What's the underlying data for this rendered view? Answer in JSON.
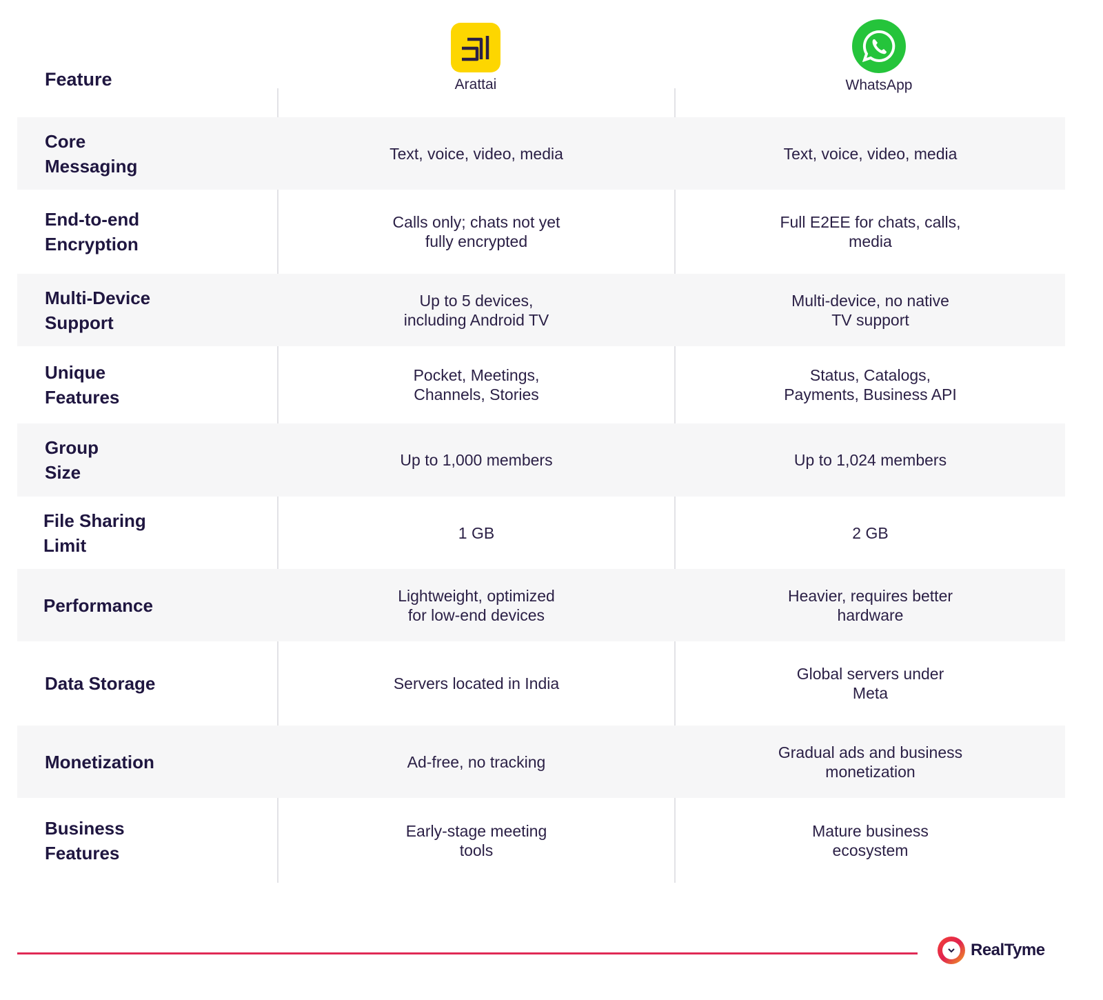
{
  "header": {
    "feature_label": "Feature",
    "columns": [
      {
        "name": "Arattai",
        "icon": "arattai-logo-icon",
        "color": "#FDD600"
      },
      {
        "name": "WhatsApp",
        "icon": "whatsapp-logo-icon",
        "color": "#25C43B"
      }
    ]
  },
  "rows": [
    {
      "feature": "Core\nMessaging",
      "arattai": "Text, voice, video, media",
      "whatsapp": "Text, voice, video, media"
    },
    {
      "feature": "End-to-end\nEncryption",
      "arattai": "Calls only; chats not yet\nfully encrypted",
      "whatsapp": "Full E2EE for chats, calls,\nmedia"
    },
    {
      "feature": "Multi-Device\nSupport",
      "arattai": "Up to 5 devices,\nincluding Android TV",
      "whatsapp": "Multi-device, no native\nTV support"
    },
    {
      "feature": "Unique\nFeatures",
      "arattai": "Pocket, Meetings,\nChannels, Stories",
      "whatsapp": "Status, Catalogs,\nPayments, Business API"
    },
    {
      "feature": "Group\nSize",
      "arattai": "Up to 1,000 members",
      "whatsapp": "Up to 1,024 members"
    },
    {
      "feature": "File Sharing\nLimit",
      "arattai": "1 GB",
      "whatsapp": "2 GB"
    },
    {
      "feature": "Performance",
      "arattai": "Lightweight, optimized\nfor low-end devices",
      "whatsapp": "Heavier, requires better\nhardware"
    },
    {
      "feature": "Data Storage",
      "arattai": "Servers located in India",
      "whatsapp": "Global servers under\nMeta"
    },
    {
      "feature": "Monetization",
      "arattai": "Ad-free, no tracking",
      "whatsapp": "Gradual ads and business\nmonetization"
    },
    {
      "feature": "Business\nFeatures",
      "arattai": "Early-stage meeting\ntools",
      "whatsapp": "Mature business\necosystem"
    }
  ],
  "footer": {
    "brand": "RealTyme",
    "brand_icon": "realtyme-logo-icon",
    "accent_color": "#E02A55"
  }
}
